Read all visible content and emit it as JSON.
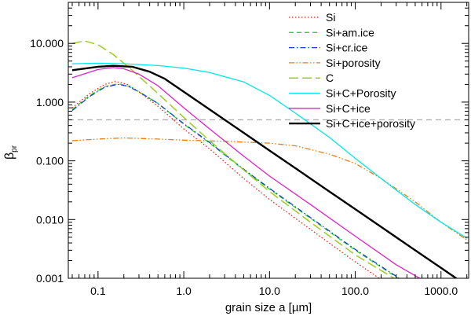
{
  "chart_data": {
    "type": "line",
    "title": "",
    "xlabel": "grain size a [µm]",
    "ylabel_main": "β",
    "ylabel_sub": "pr",
    "xscale": "log",
    "yscale": "log",
    "xlim": [
      0.045,
      2100
    ],
    "ylim": [
      0.001,
      50
    ],
    "xticks": [
      {
        "value": 0.1,
        "label": "0.1"
      },
      {
        "value": 1,
        "label": "1.0"
      },
      {
        "value": 10,
        "label": "10.0"
      },
      {
        "value": 100,
        "label": "100.0"
      },
      {
        "value": 1000,
        "label": "1000.0"
      }
    ],
    "yticks": [
      {
        "value": 0.001,
        "label": "0.001"
      },
      {
        "value": 0.01,
        "label": "0.010"
      },
      {
        "value": 0.1,
        "label": "0.100"
      },
      {
        "value": 1,
        "label": "1.000"
      },
      {
        "value": 10,
        "label": "10.000"
      }
    ],
    "reference_line": {
      "y": 0.5,
      "style": "dashed",
      "color": "#999999"
    },
    "legend_position": "top-right",
    "series": [
      {
        "name": "Si",
        "color": "#e8251c",
        "style": "dotted",
        "width": 1.3,
        "points": [
          [
            0.05,
            0.8
          ],
          [
            0.08,
            1.4
          ],
          [
            0.12,
            2.0
          ],
          [
            0.16,
            2.25
          ],
          [
            0.22,
            2.0
          ],
          [
            0.3,
            1.5
          ],
          [
            0.5,
            0.85
          ],
          [
            1.0,
            0.35
          ],
          [
            2.0,
            0.16
          ],
          [
            5.0,
            0.05
          ],
          [
            10.0,
            0.022
          ],
          [
            30.0,
            0.0068
          ],
          [
            100.0,
            0.0019
          ],
          [
            200.0,
            0.00095
          ]
        ]
      },
      {
        "name": "Si+am.ice",
        "color": "#22e02b",
        "style": "dashed",
        "width": 1.3,
        "points": [
          [
            0.05,
            0.75
          ],
          [
            0.08,
            1.3
          ],
          [
            0.12,
            1.85
          ],
          [
            0.17,
            2.05
          ],
          [
            0.22,
            1.9
          ],
          [
            0.3,
            1.5
          ],
          [
            0.5,
            0.95
          ],
          [
            1.0,
            0.42
          ],
          [
            2.0,
            0.2
          ],
          [
            5.0,
            0.07
          ],
          [
            10.0,
            0.033
          ],
          [
            30.0,
            0.0105
          ],
          [
            100.0,
            0.003
          ],
          [
            300.0,
            0.00105
          ],
          [
            330.0,
            0.00095
          ]
        ]
      },
      {
        "name": "Si+cr.ice",
        "color": "#1f3ad6",
        "style": "dashdot",
        "width": 1.3,
        "points": [
          [
            0.05,
            0.72
          ],
          [
            0.08,
            1.25
          ],
          [
            0.12,
            1.8
          ],
          [
            0.17,
            2.0
          ],
          [
            0.22,
            1.88
          ],
          [
            0.3,
            1.5
          ],
          [
            0.5,
            0.95
          ],
          [
            1.0,
            0.43
          ],
          [
            2.0,
            0.205
          ],
          [
            5.0,
            0.072
          ],
          [
            10.0,
            0.034
          ],
          [
            30.0,
            0.0108
          ],
          [
            100.0,
            0.0031
          ],
          [
            300.0,
            0.00108
          ],
          [
            340.0,
            0.00095
          ]
        ]
      },
      {
        "name": "Si+porosity",
        "color": "#ee7d10",
        "style": "dashdotdot",
        "width": 1.3,
        "points": [
          [
            0.05,
            0.22
          ],
          [
            0.1,
            0.235
          ],
          [
            0.2,
            0.245
          ],
          [
            0.5,
            0.235
          ],
          [
            1.0,
            0.225
          ],
          [
            3.0,
            0.215
          ],
          [
            10.0,
            0.2
          ],
          [
            20.0,
            0.18
          ],
          [
            50.0,
            0.13
          ],
          [
            100.0,
            0.09
          ],
          [
            200.0,
            0.05
          ],
          [
            500.0,
            0.02
          ],
          [
            1000.0,
            0.009
          ],
          [
            2000.0,
            0.0045
          ]
        ]
      },
      {
        "name": "C",
        "color": "#9ccc23",
        "style": "longdash",
        "width": 1.5,
        "points": [
          [
            0.05,
            10.0
          ],
          [
            0.07,
            11.0
          ],
          [
            0.1,
            9.5
          ],
          [
            0.15,
            6.5
          ],
          [
            0.25,
            3.5
          ],
          [
            0.5,
            1.4
          ],
          [
            1.0,
            0.55
          ],
          [
            2.0,
            0.22
          ],
          [
            5.0,
            0.07
          ],
          [
            10.0,
            0.03
          ],
          [
            30.0,
            0.009
          ],
          [
            100.0,
            0.0025
          ],
          [
            300.0,
            0.00095
          ]
        ]
      },
      {
        "name": "Si+C+Porosity",
        "color": "#00e8e8",
        "style": "solid",
        "width": 1.3,
        "points": [
          [
            0.05,
            4.5
          ],
          [
            0.1,
            4.6
          ],
          [
            0.2,
            4.5
          ],
          [
            0.5,
            4.2
          ],
          [
            1.0,
            3.8
          ],
          [
            2.0,
            3.2
          ],
          [
            5.0,
            2.2
          ],
          [
            10.0,
            1.3
          ],
          [
            20.0,
            0.65
          ],
          [
            50.0,
            0.25
          ],
          [
            100.0,
            0.11
          ],
          [
            200.0,
            0.05
          ],
          [
            500.0,
            0.018
          ],
          [
            1000.0,
            0.009
          ],
          [
            2000.0,
            0.0048
          ]
        ]
      },
      {
        "name": "Si+C+ice",
        "color": "#dd22cc",
        "style": "solid",
        "width": 1.3,
        "points": [
          [
            0.05,
            2.6
          ],
          [
            0.1,
            3.6
          ],
          [
            0.15,
            3.9
          ],
          [
            0.2,
            3.7
          ],
          [
            0.3,
            3.0
          ],
          [
            0.5,
            1.9
          ],
          [
            1.0,
            0.8
          ],
          [
            2.0,
            0.35
          ],
          [
            5.0,
            0.12
          ],
          [
            10.0,
            0.055
          ],
          [
            30.0,
            0.018
          ],
          [
            100.0,
            0.0052
          ],
          [
            300.0,
            0.0017
          ],
          [
            600.0,
            0.00095
          ]
        ]
      },
      {
        "name": "Si+C+ice+porosity",
        "color": "#000000",
        "style": "solid",
        "width": 2.4,
        "points": [
          [
            0.05,
            3.5
          ],
          [
            0.1,
            4.0
          ],
          [
            0.15,
            4.15
          ],
          [
            0.25,
            4.0
          ],
          [
            0.4,
            3.3
          ],
          [
            0.6,
            2.5
          ],
          [
            1.0,
            1.5
          ],
          [
            2.0,
            0.75
          ],
          [
            5.0,
            0.3
          ],
          [
            10.0,
            0.15
          ],
          [
            20.0,
            0.075
          ],
          [
            50.0,
            0.03
          ],
          [
            100.0,
            0.015
          ],
          [
            200.0,
            0.0075
          ],
          [
            500.0,
            0.003
          ],
          [
            1000.0,
            0.0015
          ],
          [
            2000.0,
            0.00075
          ]
        ]
      }
    ]
  }
}
